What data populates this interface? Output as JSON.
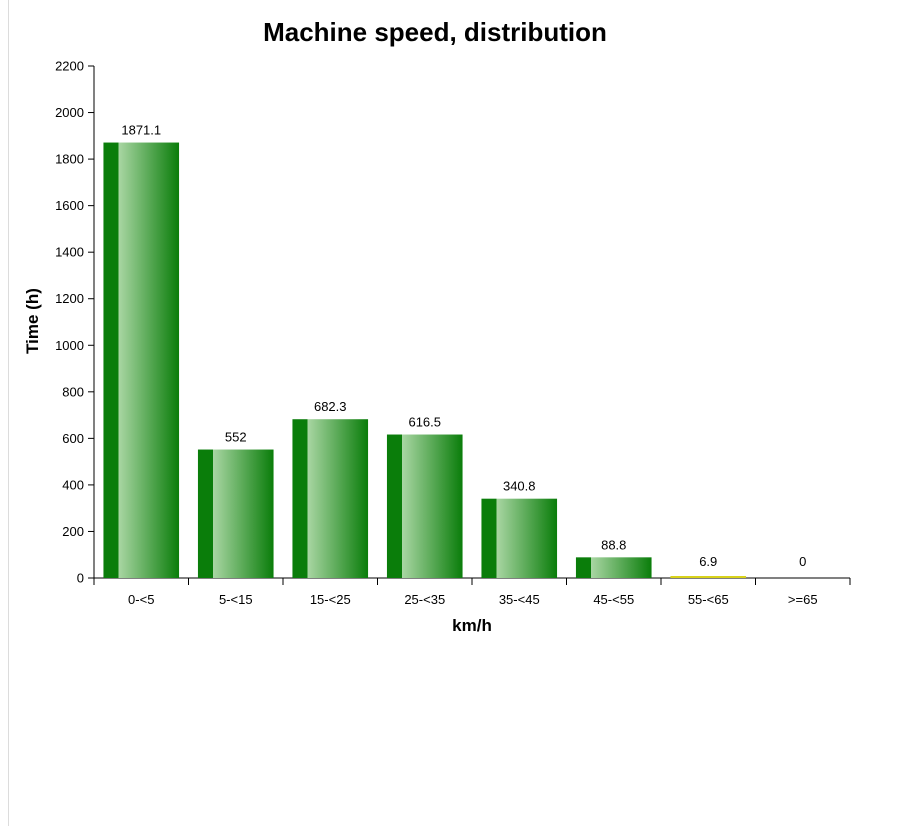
{
  "chart_data": {
    "type": "bar",
    "title": "Machine speed, distribution",
    "xlabel": "km/h",
    "ylabel": "Time (h)",
    "categories": [
      "0-<5",
      "5-<15",
      "15-<25",
      "25-<35",
      "35-<45",
      "45-<55",
      "55-<65",
      ">=65"
    ],
    "values": [
      1871.1,
      552,
      682.3,
      616.5,
      340.8,
      88.8,
      6.9,
      0
    ],
    "value_labels": [
      "1871.1",
      "552",
      "682.3",
      "616.5",
      "340.8",
      "88.8",
      "6.9",
      "0"
    ],
    "ylim": [
      0,
      2200
    ],
    "yticks": [
      0,
      200,
      400,
      600,
      800,
      1000,
      1200,
      1400,
      1600,
      1800,
      2000,
      2200
    ],
    "ytick_labels": [
      "0",
      "200",
      "400",
      "600",
      "800",
      "1000",
      "1200",
      "1400",
      "1600",
      "1800",
      "2000",
      "2200"
    ],
    "grid": false,
    "colors": {
      "bar_dark": "#0a7d0a",
      "bar_light": "#a9d6a3",
      "small_bar": "#d8d21a",
      "axis": "#000000"
    }
  }
}
